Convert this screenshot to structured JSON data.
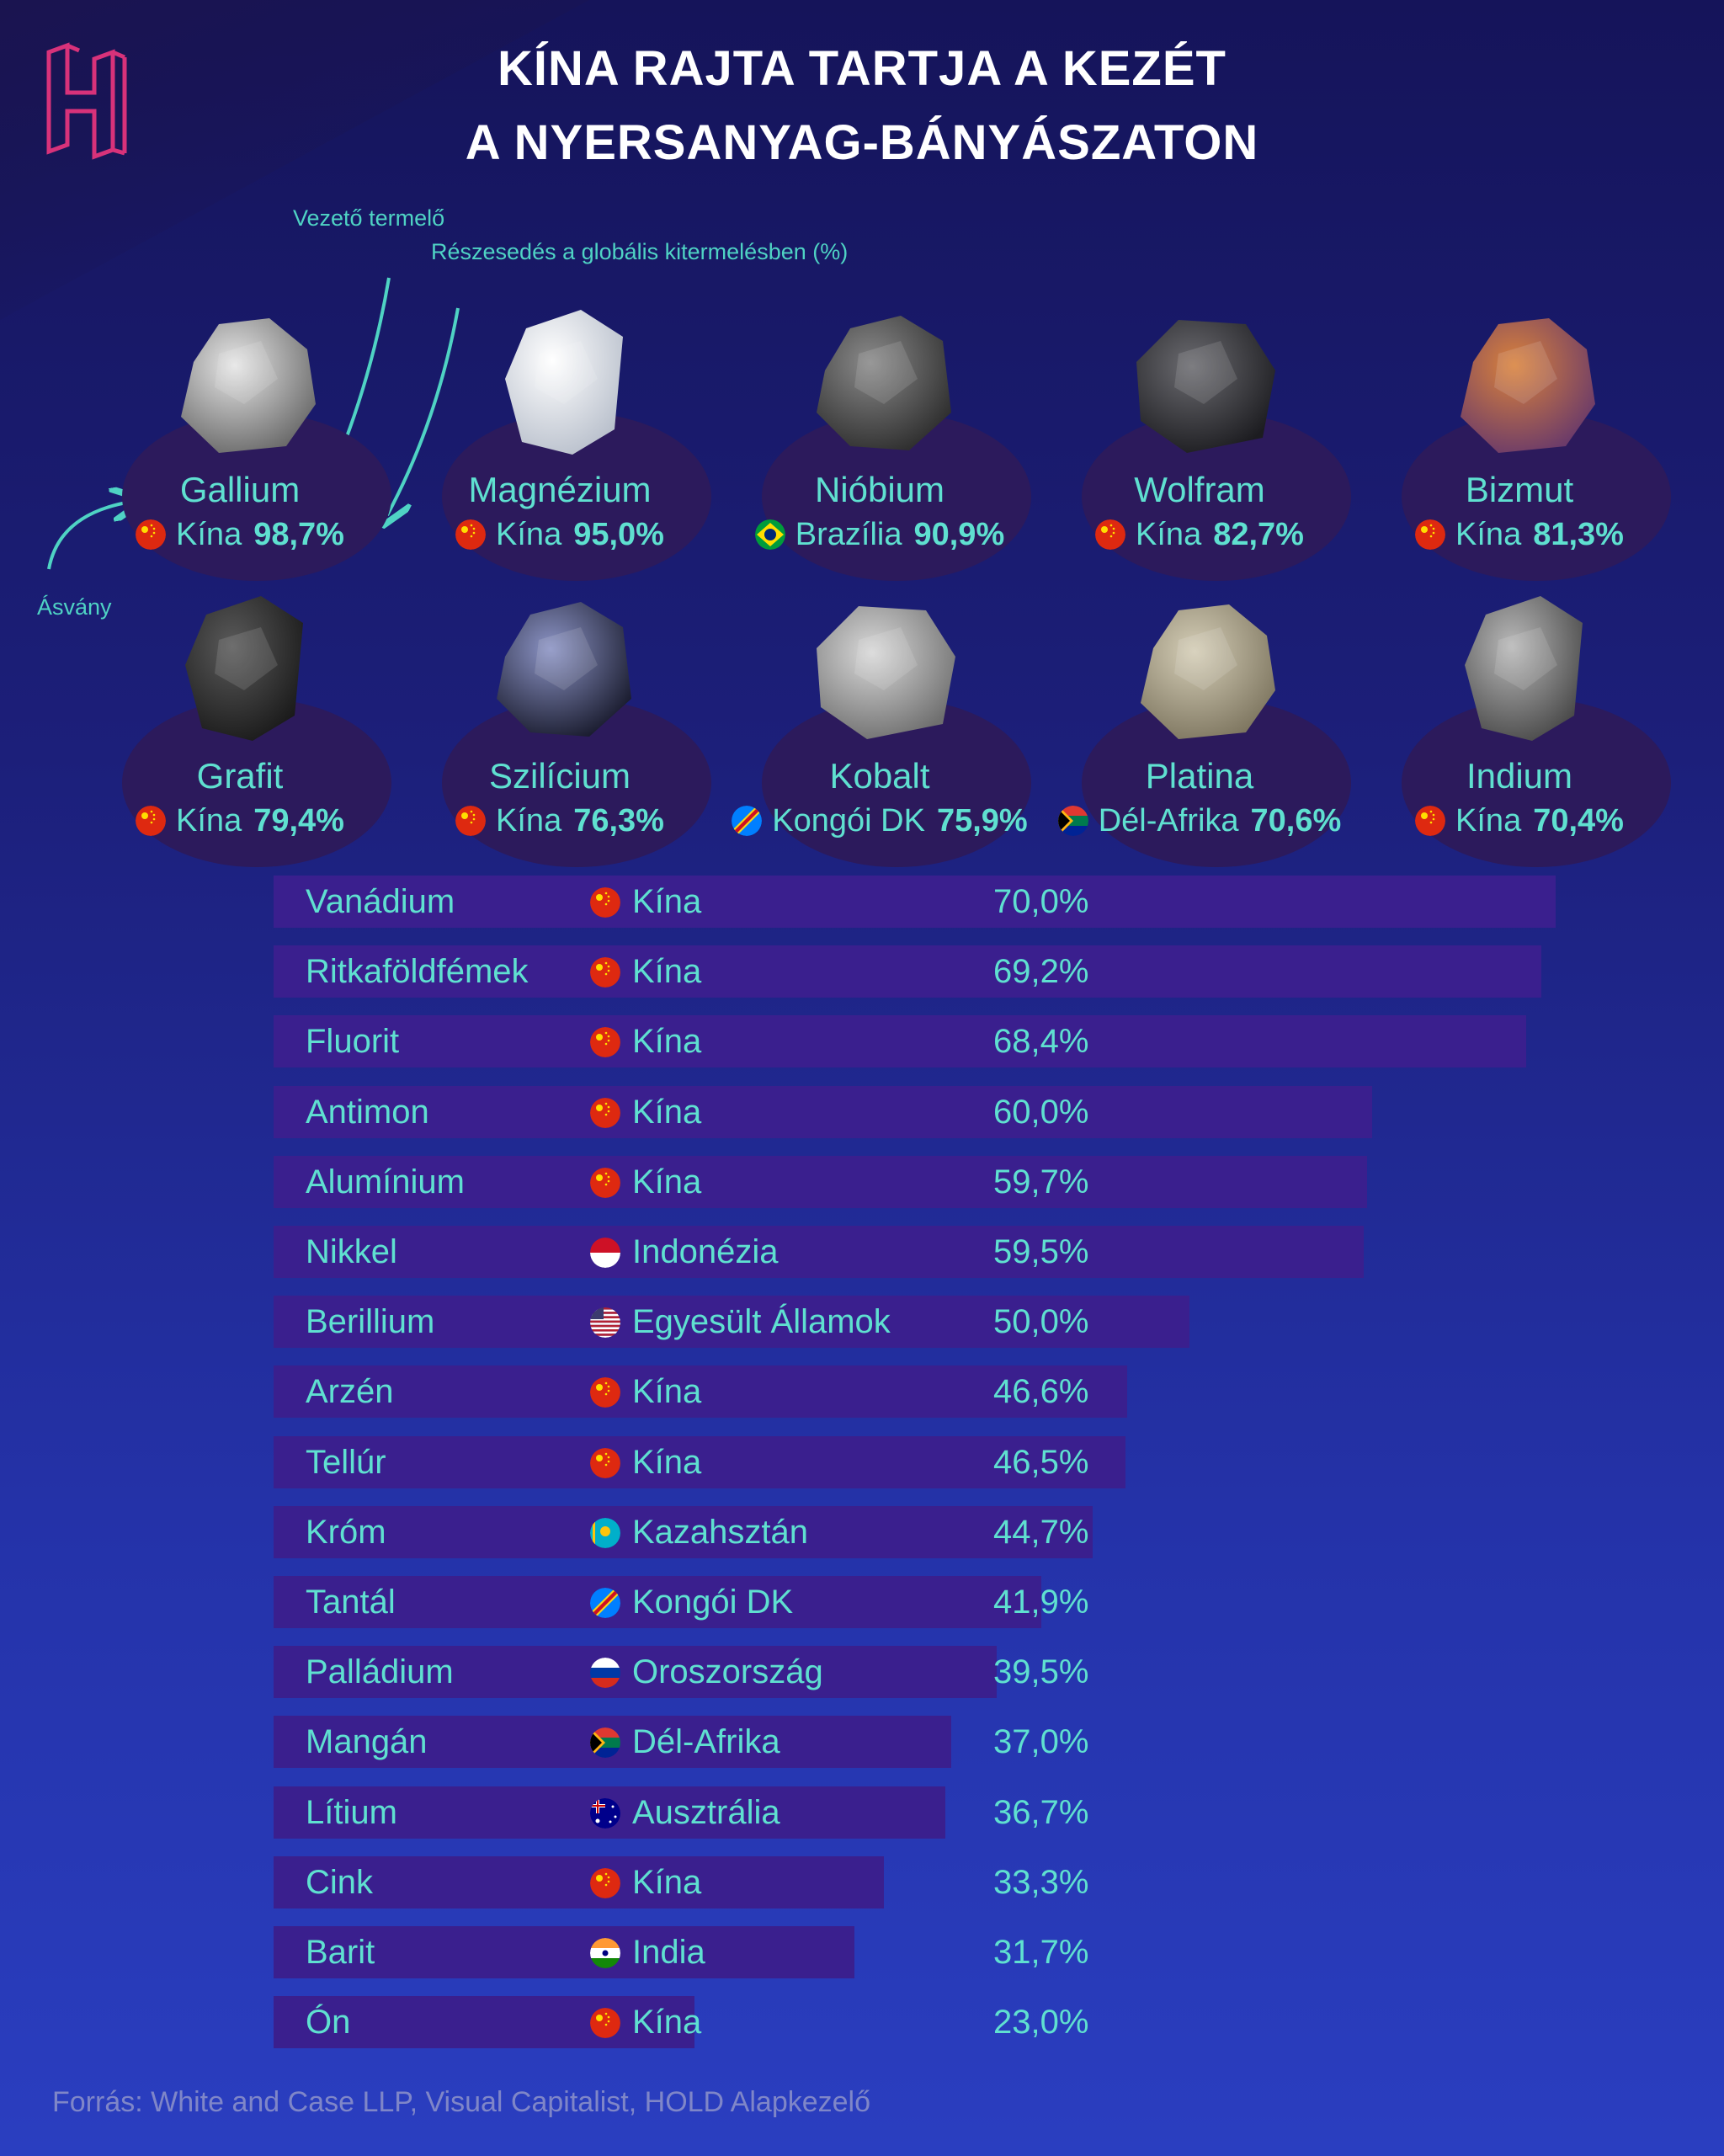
{
  "title_line1": "KÍNA RAJTA TARTJA A KEZÉT",
  "title_line2": "A NYERSANYAG-BÁNYÁSZATON",
  "annotations": {
    "leading_producer": "Vezető termelő",
    "share": "Részesedés a globális kitermelésben (%)",
    "mineral": "Ásvány"
  },
  "logo_icon": "h-logo-icon",
  "colors": {
    "accent": "#5fe0d0",
    "bar": "#3a1f8e",
    "logo": "#d8327a",
    "disc": "#2c1a5c"
  },
  "chart_data": {
    "type": "bar",
    "orientation": "horizontal",
    "title": "KÍNA RAJTA TARTJA A KEZÉT A NYERSANYAG-BÁNYÁSZATON",
    "featured": [
      {
        "mineral": "Gallium",
        "country": "Kína",
        "flag": "china",
        "value": 98.7,
        "value_label": "98,7%"
      },
      {
        "mineral": "Magnézium",
        "country": "Kína",
        "flag": "china",
        "value": 95.0,
        "value_label": "95,0%"
      },
      {
        "mineral": "Nióbium",
        "country": "Brazília",
        "flag": "brazil",
        "value": 90.9,
        "value_label": "90,9%"
      },
      {
        "mineral": "Wolfram",
        "country": "Kína",
        "flag": "china",
        "value": 82.7,
        "value_label": "82,7%"
      },
      {
        "mineral": "Bizmut",
        "country": "Kína",
        "flag": "china",
        "value": 81.3,
        "value_label": "81,3%"
      },
      {
        "mineral": "Grafit",
        "country": "Kína",
        "flag": "china",
        "value": 79.4,
        "value_label": "79,4%"
      },
      {
        "mineral": "Szilícium",
        "country": "Kína",
        "flag": "china",
        "value": 76.3,
        "value_label": "76,3%"
      },
      {
        "mineral": "Kobalt",
        "country": "Kongói DK",
        "flag": "drc",
        "value": 75.9,
        "value_label": "75,9%"
      },
      {
        "mineral": "Platina",
        "country": "Dél-Afrika",
        "flag": "south-africa",
        "value": 70.6,
        "value_label": "70,6%"
      },
      {
        "mineral": "Indium",
        "country": "Kína",
        "flag": "china",
        "value": 70.4,
        "value_label": "70,4%"
      }
    ],
    "rows": [
      {
        "mineral": "Vanádium",
        "country": "Kína",
        "flag": "china",
        "value": 70.0,
        "value_label": "70,0%"
      },
      {
        "mineral": "Ritkaföldfémek",
        "country": "Kína",
        "flag": "china",
        "value": 69.2,
        "value_label": "69,2%"
      },
      {
        "mineral": "Fluorit",
        "country": "Kína",
        "flag": "china",
        "value": 68.4,
        "value_label": "68,4%"
      },
      {
        "mineral": "Antimon",
        "country": "Kína",
        "flag": "china",
        "value": 60.0,
        "value_label": "60,0%"
      },
      {
        "mineral": "Alumínium",
        "country": "Kína",
        "flag": "china",
        "value": 59.7,
        "value_label": "59,7%"
      },
      {
        "mineral": "Nikkel",
        "country": "Indonézia",
        "flag": "indonesia",
        "value": 59.5,
        "value_label": "59,5%"
      },
      {
        "mineral": "Berillium",
        "country": "Egyesült Államok",
        "flag": "usa",
        "value": 50.0,
        "value_label": "50,0%"
      },
      {
        "mineral": "Arzén",
        "country": "Kína",
        "flag": "china",
        "value": 46.6,
        "value_label": "46,6%"
      },
      {
        "mineral": "Tellúr",
        "country": "Kína",
        "flag": "china",
        "value": 46.5,
        "value_label": "46,5%"
      },
      {
        "mineral": "Króm",
        "country": "Kazahsztán",
        "flag": "kazakhstan",
        "value": 44.7,
        "value_label": "44,7%"
      },
      {
        "mineral": "Tantál",
        "country": "Kongói DK",
        "flag": "drc",
        "value": 41.9,
        "value_label": "41,9%"
      },
      {
        "mineral": "Palládium",
        "country": "Oroszország",
        "flag": "russia",
        "value": 39.5,
        "value_label": "39,5%"
      },
      {
        "mineral": "Mangán",
        "country": "Dél-Afrika",
        "flag": "south-africa",
        "value": 37.0,
        "value_label": "37,0%"
      },
      {
        "mineral": "Lítium",
        "country": "Ausztrália",
        "flag": "australia",
        "value": 36.7,
        "value_label": "36,7%"
      },
      {
        "mineral": "Cink",
        "country": "Kína",
        "flag": "china",
        "value": 33.3,
        "value_label": "33,3%"
      },
      {
        "mineral": "Barit",
        "country": "India",
        "flag": "india",
        "value": 31.7,
        "value_label": "31,7%"
      },
      {
        "mineral": "Ón",
        "country": "Kína",
        "flag": "china",
        "value": 23.0,
        "value_label": "23,0%"
      }
    ]
  },
  "source": "Forrás: White and Case LLP, Visual Capitalist, HOLD Alapkezelő"
}
